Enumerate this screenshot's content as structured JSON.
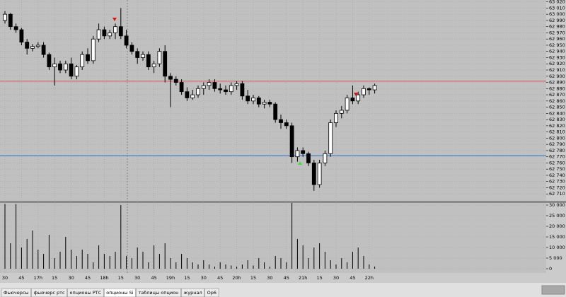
{
  "chart_data": [
    {
      "type": "candlestick",
      "categories": [
        "30",
        null,
        null,
        "45",
        null,
        null,
        "17h",
        null,
        null,
        "15",
        null,
        null,
        "30",
        null,
        null,
        "45",
        null,
        null,
        "18h",
        null,
        null,
        "15",
        null,
        null,
        "30",
        null,
        null,
        "45",
        null,
        null,
        "19h",
        null,
        null,
        "15",
        null,
        null,
        "30",
        null,
        null,
        "45",
        null,
        null,
        "20h",
        null,
        null,
        "15",
        null,
        null,
        "30",
        null,
        null,
        "45",
        null,
        null,
        "21h",
        null,
        null,
        "15",
        null,
        null,
        "30",
        null,
        null,
        "45",
        null,
        null,
        "22h",
        null
      ],
      "open": [
        62990,
        63000,
        62980,
        62975,
        62955,
        62945,
        62948,
        62950,
        62935,
        62915,
        62920,
        62910,
        62920,
        62900,
        62915,
        62935,
        62925,
        62960,
        62975,
        62965,
        62970,
        62980,
        62965,
        62950,
        62940,
        62930,
        62935,
        62915,
        62920,
        62940,
        62900,
        62895,
        62890,
        62875,
        62865,
        62870,
        62880,
        62885,
        62890,
        62880,
        62878,
        62875,
        62885,
        62888,
        62868,
        62860,
        62865,
        62855,
        62858,
        62855,
        62830,
        62825,
        62820,
        62770,
        62780,
        62775,
        62760,
        62725,
        62760,
        62775,
        62825,
        62840,
        62845,
        62865,
        62860,
        62870,
        62880,
        62878
      ],
      "high": [
        63005,
        63002,
        62985,
        62978,
        62960,
        62952,
        62955,
        62955,
        62938,
        62930,
        62925,
        62925,
        62930,
        62918,
        62940,
        62945,
        62965,
        62985,
        62980,
        62975,
        62985,
        63010,
        62975,
        62955,
        62945,
        62940,
        62940,
        62925,
        62945,
        62950,
        62905,
        62900,
        62895,
        62882,
        62878,
        62885,
        62890,
        62895,
        62895,
        62888,
        62885,
        62890,
        62892,
        62892,
        62878,
        62870,
        62868,
        62862,
        62862,
        62858,
        62838,
        62830,
        62825,
        62785,
        62785,
        62778,
        62765,
        62765,
        62780,
        62830,
        62845,
        62852,
        62870,
        62885,
        62875,
        62885,
        62882,
        62888
      ],
      "low": [
        62985,
        62975,
        62970,
        62950,
        62935,
        62940,
        62945,
        62930,
        62910,
        62885,
        62905,
        62905,
        62895,
        62895,
        62910,
        62920,
        62920,
        62955,
        62960,
        62960,
        62960,
        62960,
        62945,
        62935,
        62920,
        62925,
        62910,
        62905,
        62915,
        62890,
        62850,
        62885,
        62870,
        62860,
        62862,
        62865,
        62870,
        62878,
        62875,
        62872,
        62870,
        62870,
        62878,
        62862,
        62855,
        62855,
        62850,
        62848,
        62850,
        62825,
        62815,
        62815,
        62760,
        62762,
        62770,
        62755,
        62715,
        62720,
        62755,
        62770,
        62818,
        62832,
        62840,
        62855,
        62855,
        62865,
        62870,
        62872
      ],
      "close": [
        63000,
        62980,
        62975,
        62955,
        62945,
        62948,
        62950,
        62935,
        62915,
        62920,
        62910,
        62920,
        62900,
        62915,
        62935,
        62925,
        62960,
        62975,
        62965,
        62970,
        62980,
        62965,
        62950,
        62940,
        62930,
        62935,
        62915,
        62920,
        62940,
        62900,
        62895,
        62890,
        62875,
        62865,
        62870,
        62880,
        62885,
        62890,
        62880,
        62878,
        62875,
        62885,
        62888,
        62868,
        62860,
        62865,
        62855,
        62858,
        62855,
        62830,
        62825,
        62820,
        62770,
        62780,
        62775,
        62760,
        62725,
        62760,
        62775,
        62825,
        62840,
        62845,
        62865,
        62860,
        62870,
        62880,
        62878,
        62885
      ],
      "up_color": "#ffffff",
      "down_color": "#000000",
      "ylim": [
        62700,
        63023
      ],
      "yticks": [
        {
          "value": 63020,
          "label": "63 020"
        },
        {
          "value": 63010,
          "label": "63 010"
        },
        {
          "value": 63000,
          "label": "63 000"
        },
        {
          "value": 62990,
          "label": "62 990"
        },
        {
          "value": 62980,
          "label": "62 980"
        },
        {
          "value": 62970,
          "label": "62 970"
        },
        {
          "value": 62960,
          "label": "62 960"
        },
        {
          "value": 62950,
          "label": "62 950"
        },
        {
          "value": 62940,
          "label": "62 940"
        },
        {
          "value": 62930,
          "label": "62 930"
        },
        {
          "value": 62920,
          "label": "62 920"
        },
        {
          "value": 62910,
          "label": "62 910"
        },
        {
          "value": 62900,
          "label": "62 900"
        },
        {
          "value": 62890,
          "label": "62 890"
        },
        {
          "value": 62880,
          "label": "62 880"
        },
        {
          "value": 62870,
          "label": "62 870"
        },
        {
          "value": 62860,
          "label": "62 860"
        },
        {
          "value": 62850,
          "label": "62 850"
        },
        {
          "value": 62840,
          "label": "62 840"
        },
        {
          "value": 62830,
          "label": "62 830"
        },
        {
          "value": 62820,
          "label": "62 820"
        },
        {
          "value": 62810,
          "label": "62 810"
        },
        {
          "value": 62800,
          "label": "62 800"
        },
        {
          "value": 62790,
          "label": "62 790"
        },
        {
          "value": 62780,
          "label": "62 780"
        },
        {
          "value": 62770,
          "label": "62 770"
        },
        {
          "value": 62760,
          "label": "62 760"
        },
        {
          "value": 62750,
          "label": "62 750"
        },
        {
          "value": 62740,
          "label": "62 740"
        },
        {
          "value": 62730,
          "label": "62 730"
        },
        {
          "value": 62720,
          "label": "62 720"
        },
        {
          "value": 62710,
          "label": "62 710"
        }
      ],
      "hlines": [
        {
          "value": 62892,
          "color": "#d86a6a"
        },
        {
          "value": 62772,
          "color": "#3a82d8"
        }
      ],
      "grid": true
    },
    {
      "type": "bar",
      "values": [
        30500,
        12000,
        30500,
        10000,
        14000,
        18000,
        9000,
        7000,
        16000,
        5000,
        8000,
        15000,
        9000,
        6000,
        9000,
        7000,
        3000,
        11000,
        7000,
        6000,
        8000,
        30000,
        6000,
        5000,
        10000,
        8000,
        3000,
        11000,
        7000,
        12000,
        5000,
        3000,
        7000,
        5000,
        3000,
        2000,
        4000,
        2000,
        1000,
        3000,
        2000,
        1500,
        1000,
        2000,
        4000,
        1500,
        5000,
        3000,
        1000,
        6000,
        5000,
        3000,
        31000,
        14000,
        11000,
        5000,
        10000,
        12000,
        8000,
        4000,
        2000,
        5000,
        3000,
        8000,
        10000,
        6000,
        2000,
        1000
      ],
      "color": "#000000",
      "ylim": [
        -2000,
        31000
      ],
      "yticks": [
        {
          "value": 30000,
          "label": "30 000"
        },
        {
          "value": 25000,
          "label": "25 000"
        },
        {
          "value": 20000,
          "label": "20 000"
        },
        {
          "value": 15000,
          "label": "15 000"
        },
        {
          "value": 10000,
          "label": "10 000"
        },
        {
          "value": 5000,
          "label": "5 000"
        },
        0
      ],
      "grid": true
    }
  ],
  "tabs": [
    "Фьючерсы",
    "фьючерс ртс",
    "опционы РТС",
    "опционы Si",
    "таблицы опцион",
    "журнал",
    "Ор6"
  ]
}
